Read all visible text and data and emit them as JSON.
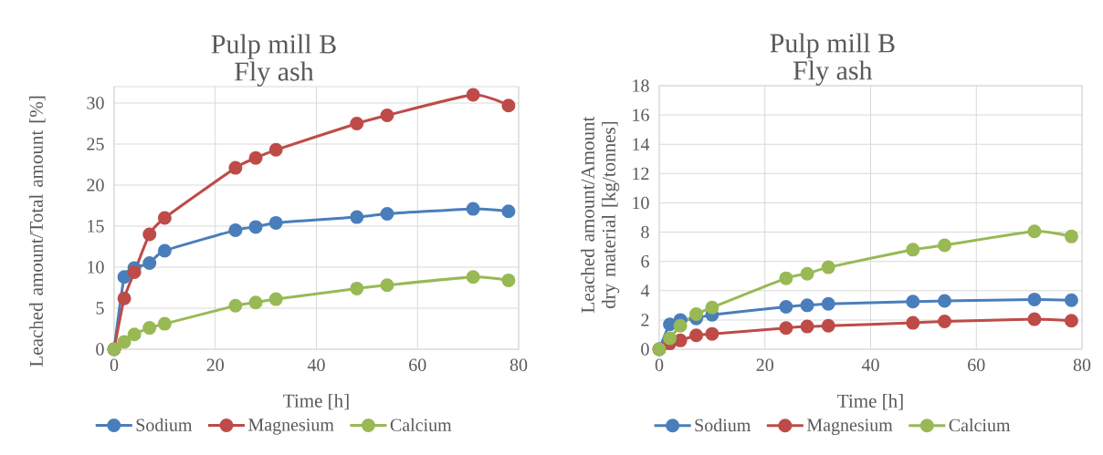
{
  "chart_data": [
    {
      "type": "line",
      "title": "Pulp mill B",
      "subtitle": "Fly ash",
      "xlabel": "Time [h]",
      "ylabel": "Leached amount/Total amount [%]",
      "x": [
        0,
        2,
        4,
        7,
        10,
        24,
        28,
        32,
        48,
        54,
        71,
        78
      ],
      "xlim": [
        0,
        80
      ],
      "xticks": [
        0,
        20,
        40,
        60,
        80
      ],
      "ylim": [
        0,
        32
      ],
      "yticks": [
        0,
        5,
        10,
        15,
        20,
        25,
        30
      ],
      "grid": true,
      "legend": "bottom",
      "marker": "circle",
      "series": [
        {
          "name": "Sodium",
          "color": "#4a7ebb",
          "values": [
            0,
            8.8,
            9.9,
            10.5,
            12,
            14.5,
            14.9,
            15.4,
            16.1,
            16.5,
            17.1,
            16.8
          ]
        },
        {
          "name": "Magnesium",
          "color": "#be4b48",
          "values": [
            0,
            6.2,
            9.4,
            14,
            16,
            22.1,
            23.3,
            24.3,
            27.5,
            28.5,
            31,
            29.7
          ]
        },
        {
          "name": "Calcium",
          "color": "#98b954",
          "values": [
            0,
            0.9,
            1.8,
            2.6,
            3.1,
            5.3,
            5.7,
            6.1,
            7.4,
            7.8,
            8.8,
            8.4
          ]
        }
      ]
    },
    {
      "type": "line",
      "title": "Pulp mill B",
      "subtitle": "Fly ash",
      "xlabel": "Time [h]",
      "ylabel": "Leached amount/Amount dry material [kg/tonnes]",
      "x": [
        0,
        2,
        4,
        7,
        10,
        24,
        28,
        32,
        48,
        54,
        71,
        78
      ],
      "xlim": [
        0,
        80
      ],
      "xticks": [
        0,
        20,
        40,
        60,
        80
      ],
      "ylim": [
        0,
        18
      ],
      "yticks": [
        0,
        2,
        4,
        6,
        8,
        10,
        12,
        14,
        16,
        18
      ],
      "grid": true,
      "legend": "bottom",
      "marker": "circle",
      "series": [
        {
          "name": "Sodium",
          "color": "#4a7ebb",
          "values": [
            0,
            1.7,
            2.0,
            2.1,
            2.35,
            2.9,
            3.0,
            3.1,
            3.25,
            3.3,
            3.4,
            3.35
          ]
        },
        {
          "name": "Magnesium",
          "color": "#be4b48",
          "values": [
            0,
            0.4,
            0.6,
            0.95,
            1.05,
            1.45,
            1.55,
            1.6,
            1.8,
            1.9,
            2.05,
            1.95
          ]
        },
        {
          "name": "Calcium",
          "color": "#98b954",
          "values": [
            0,
            0.75,
            1.6,
            2.4,
            2.85,
            4.85,
            5.15,
            5.6,
            6.8,
            7.1,
            8.05,
            7.7
          ]
        }
      ]
    }
  ]
}
